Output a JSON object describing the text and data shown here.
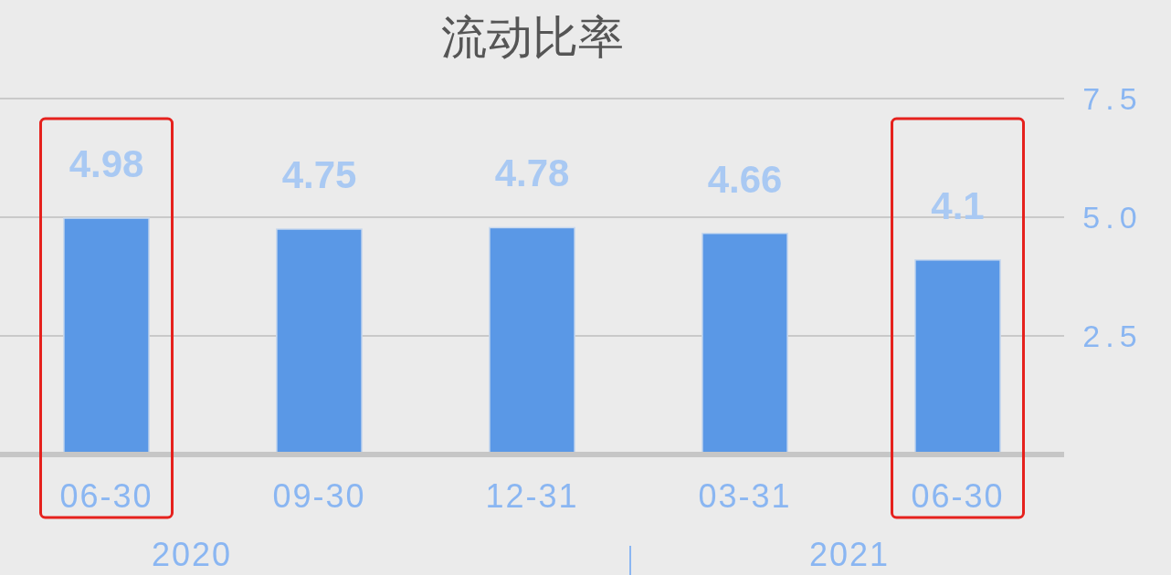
{
  "chart_data": {
    "type": "bar",
    "title": "流动比率",
    "categories": [
      "06-30",
      "09-30",
      "12-31",
      "03-31",
      "06-30"
    ],
    "values": [
      4.98,
      4.75,
      4.78,
      4.66,
      4.1
    ],
    "color": "#5a98e6",
    "ylim": [
      0,
      7.5
    ],
    "yticks": [
      2.5,
      {
        "value": 5,
        "label": "5.0"
      },
      7.5
    ],
    "grid": "y",
    "data_labels": true,
    "annotations": [
      "2020",
      "2021"
    ]
  }
}
